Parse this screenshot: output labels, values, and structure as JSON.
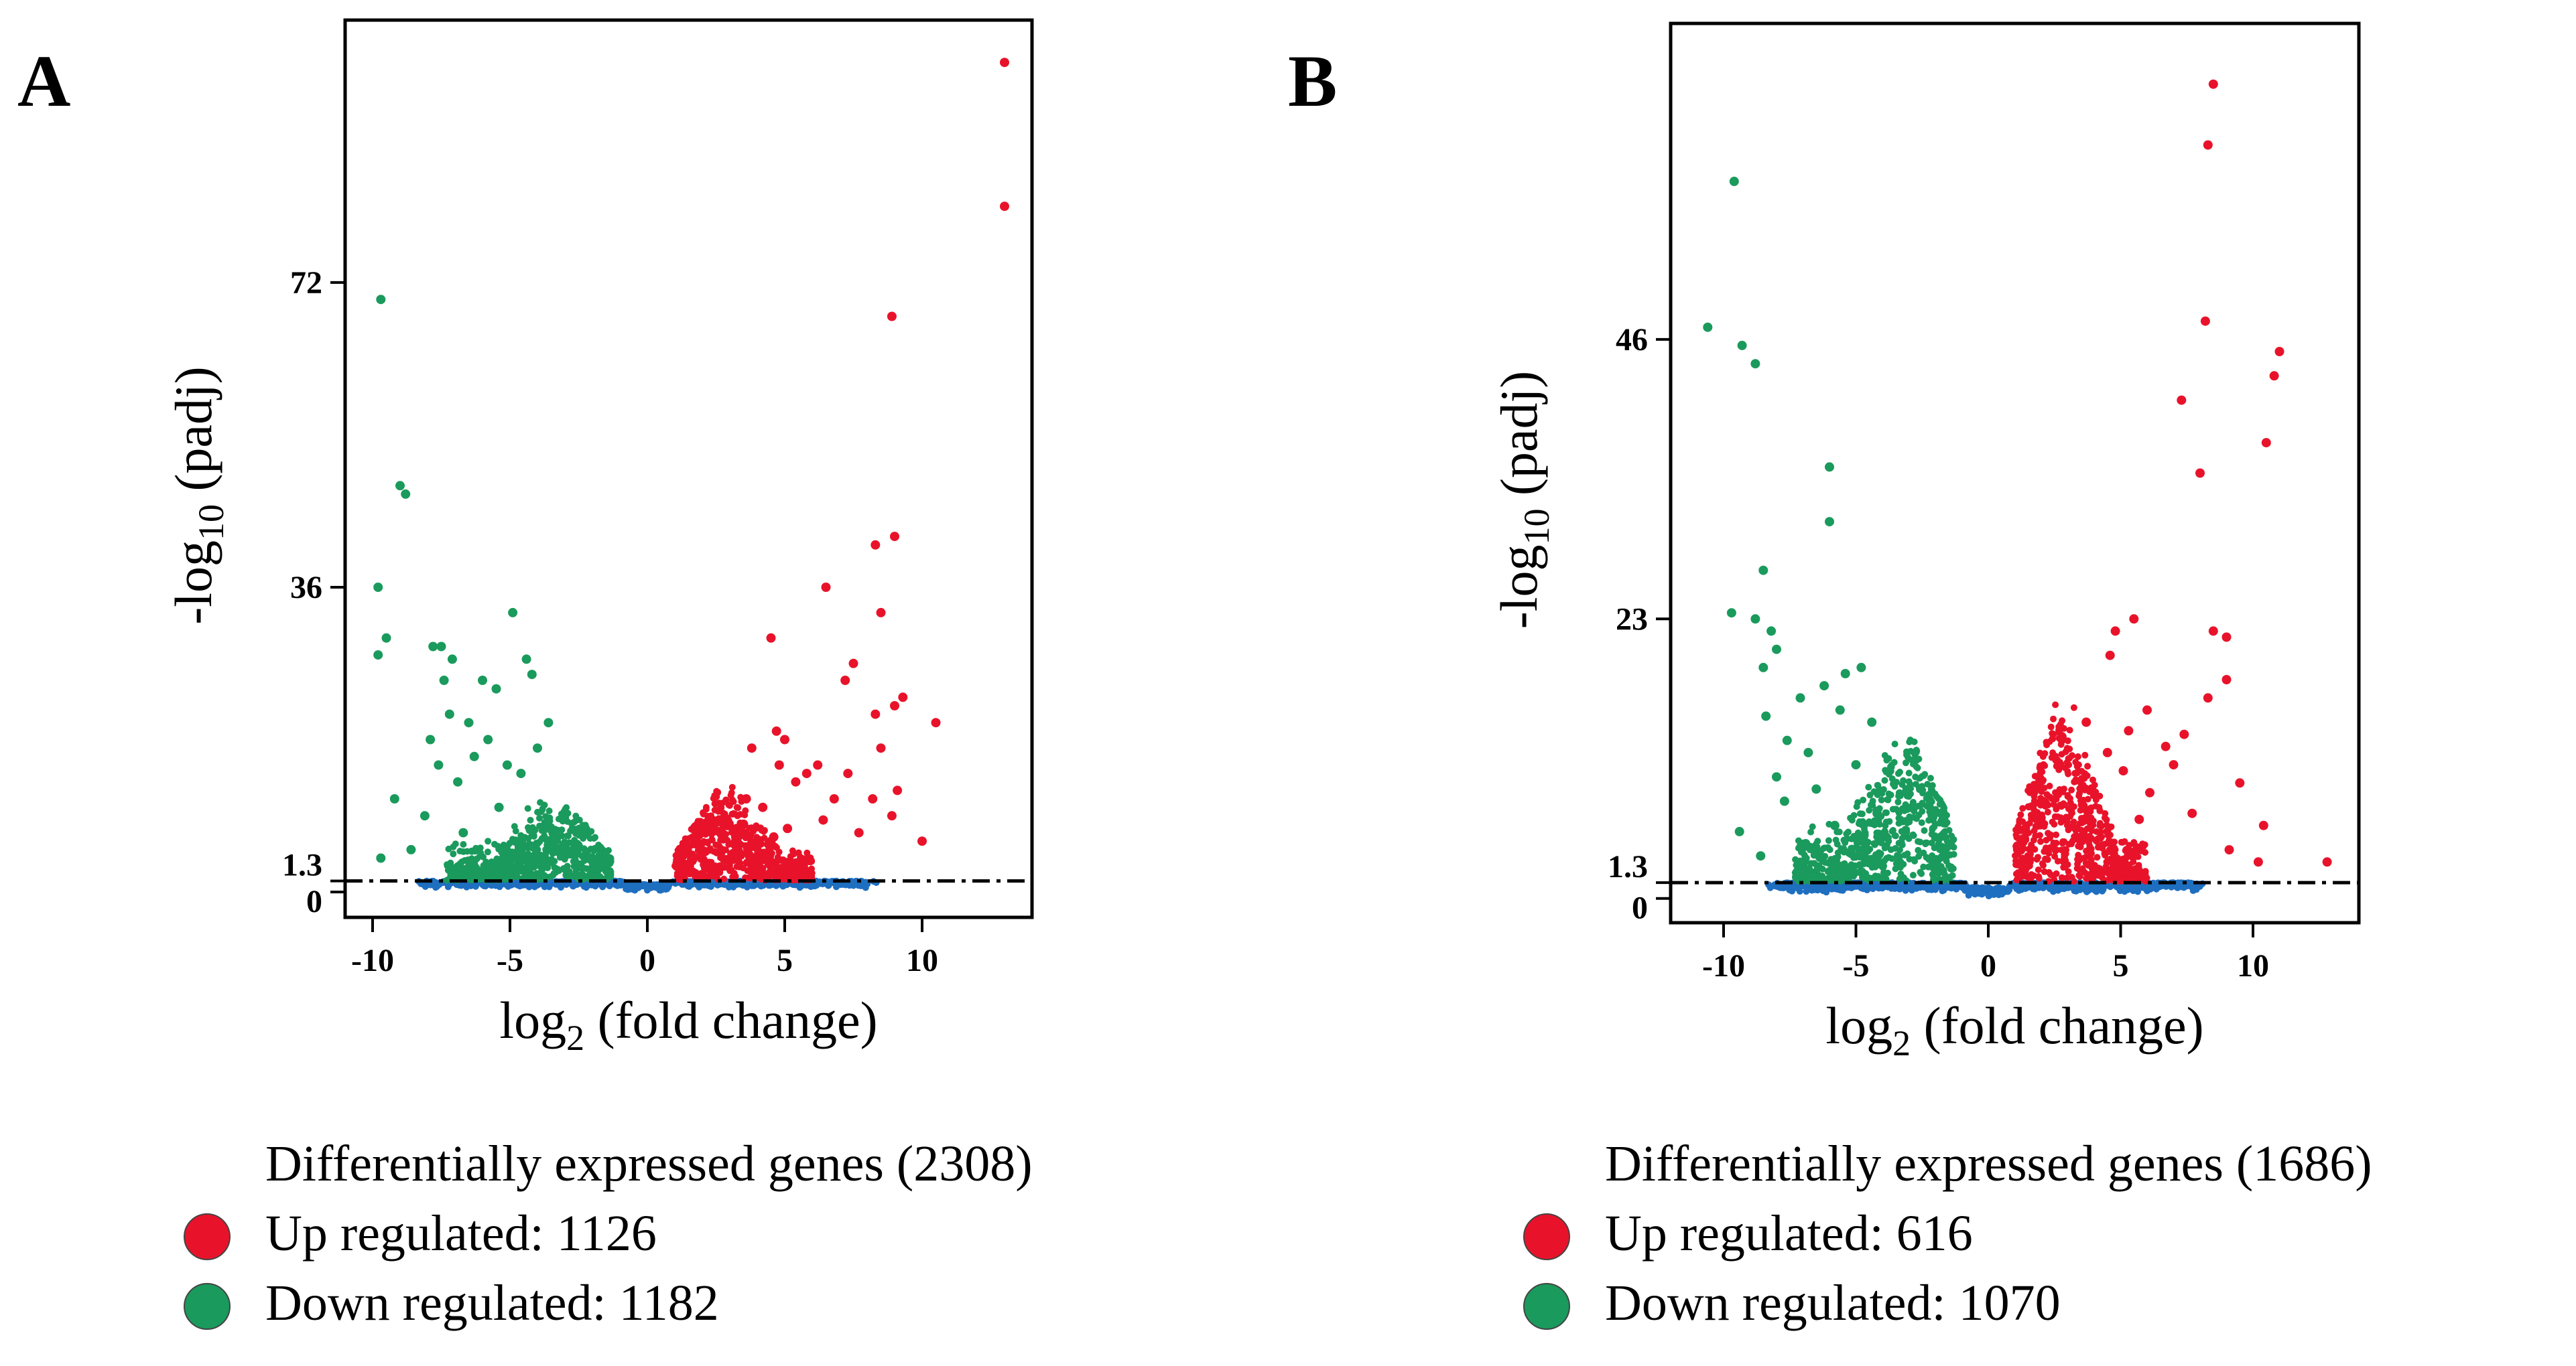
{
  "chart_data": [
    {
      "type": "scatter",
      "panel_label": "A",
      "xlabel": "log",
      "xlabel_sub": "2",
      "xlabel_rest": " (fold change)",
      "ylabel_prefix": "-log",
      "ylabel_sub": "10",
      "ylabel_rest": " (padj)",
      "xlim": [
        -11,
        14
      ],
      "ylim": [
        -3,
        103
      ],
      "x_ticks": [
        -10,
        -5,
        0,
        5,
        10
      ],
      "x_tick_labels": [
        "-10",
        "-5",
        "0",
        "5",
        "10"
      ],
      "y_ticks": [
        0,
        1.3,
        36,
        72
      ],
      "y_tick_labels": [
        "0",
        "1.3",
        "36",
        "72"
      ],
      "threshold": 1.3,
      "colors": {
        "up": "#e8132a",
        "down": "#1a9a5c",
        "ns": "#1f6fc0"
      },
      "series": [
        {
          "name": "Up regulated",
          "points": [
            [
              13,
              98
            ],
            [
              13,
              81
            ],
            [
              8.9,
              68
            ],
            [
              9,
              42
            ],
            [
              8.3,
              41
            ],
            [
              6.5,
              36
            ],
            [
              8.5,
              33
            ],
            [
              4.5,
              30
            ],
            [
              7.5,
              27
            ],
            [
              7.2,
              25
            ],
            [
              9.3,
              23
            ],
            [
              9,
              22
            ],
            [
              8.3,
              21
            ],
            [
              10.5,
              20
            ],
            [
              4.7,
              19
            ],
            [
              5,
              18
            ],
            [
              8.5,
              17
            ],
            [
              3.8,
              17
            ],
            [
              6.2,
              15
            ],
            [
              4.8,
              15
            ],
            [
              7.3,
              14
            ],
            [
              5.8,
              14
            ],
            [
              9.1,
              12
            ],
            [
              5.4,
              13
            ],
            [
              6.8,
              11
            ],
            [
              3.6,
              11
            ],
            [
              8.2,
              11
            ],
            [
              4.2,
              10
            ],
            [
              8.9,
              9
            ],
            [
              6.4,
              8.5
            ],
            [
              10,
              6
            ],
            [
              5.1,
              7.5
            ],
            [
              3.5,
              8
            ],
            [
              7.7,
              7
            ],
            [
              4.6,
              6.5
            ]
          ]
        },
        {
          "name": "Down regulated",
          "points": [
            [
              -9.7,
              70
            ],
            [
              -9,
              48
            ],
            [
              -8.8,
              47
            ],
            [
              -9.8,
              36
            ],
            [
              -4.9,
              33
            ],
            [
              -9.5,
              30
            ],
            [
              -9.8,
              28
            ],
            [
              -7.8,
              29
            ],
            [
              -7.5,
              29
            ],
            [
              -7.1,
              27.5
            ],
            [
              -4.4,
              27.5
            ],
            [
              -4.2,
              25.7
            ],
            [
              -7.4,
              25
            ],
            [
              -6,
              25
            ],
            [
              -5.5,
              24
            ],
            [
              -7.2,
              21
            ],
            [
              -6.5,
              20
            ],
            [
              -3.6,
              20
            ],
            [
              -5.8,
              18
            ],
            [
              -7.9,
              18
            ],
            [
              -4,
              17
            ],
            [
              -6.3,
              16
            ],
            [
              -5.1,
              15
            ],
            [
              -7.6,
              15
            ],
            [
              -4.6,
              14
            ],
            [
              -6.9,
              13
            ],
            [
              -9.2,
              11
            ],
            [
              -5.4,
              10
            ],
            [
              -8.1,
              9
            ],
            [
              -6.7,
              7
            ],
            [
              -4.8,
              6
            ],
            [
              -9.7,
              4
            ],
            [
              -8.6,
              5
            ]
          ]
        }
      ],
      "legend_title": "Differentially expressed genes (2308)",
      "up_label": "Up regulated: 1126",
      "down_label": "Down regulated: 1182"
    },
    {
      "type": "scatter",
      "panel_label": "B",
      "xlabel": "log",
      "xlabel_sub": "2",
      "xlabel_rest": " (fold change)",
      "ylabel_prefix": "-log",
      "ylabel_sub": "10",
      "ylabel_rest": " (padj)",
      "xlim": [
        -12,
        14
      ],
      "ylim": [
        -2,
        72
      ],
      "x_ticks": [
        -10,
        -5,
        0,
        5,
        10
      ],
      "x_tick_labels": [
        "-10",
        "-5",
        "0",
        "5",
        "10"
      ],
      "y_ticks": [
        0,
        1.3,
        23,
        46
      ],
      "y_tick_labels": [
        "0",
        "1.3",
        "23",
        "46"
      ],
      "threshold": 1.3,
      "colors": {
        "up": "#e8132a",
        "down": "#1a9a5c",
        "ns": "#1f6fc0"
      },
      "series": [
        {
          "name": "Up regulated",
          "points": [
            [
              8.5,
              67
            ],
            [
              8.3,
              62
            ],
            [
              8.2,
              47.5
            ],
            [
              11,
              45
            ],
            [
              10.8,
              43
            ],
            [
              7.3,
              41
            ],
            [
              10.5,
              37.5
            ],
            [
              8,
              35
            ],
            [
              5.5,
              23
            ],
            [
              4.8,
              22
            ],
            [
              8.5,
              22
            ],
            [
              9,
              21.5
            ],
            [
              4.6,
              20
            ],
            [
              9,
              18
            ],
            [
              8.3,
              16.5
            ],
            [
              6,
              15.5
            ],
            [
              3.7,
              14.5
            ],
            [
              5.3,
              13.8
            ],
            [
              7.4,
              13.5
            ],
            [
              6.7,
              12.5
            ],
            [
              4.5,
              12
            ],
            [
              7,
              11
            ],
            [
              5.1,
              10.5
            ],
            [
              9.5,
              9.5
            ],
            [
              3.9,
              9
            ],
            [
              6.1,
              8.7
            ],
            [
              10.4,
              6
            ],
            [
              10.2,
              3
            ],
            [
              9.1,
              4
            ],
            [
              12.8,
              3
            ],
            [
              7.7,
              7
            ],
            [
              5.7,
              6.5
            ]
          ]
        },
        {
          "name": "Down regulated",
          "points": [
            [
              -9.6,
              59
            ],
            [
              -10.6,
              47
            ],
            [
              -9.3,
              45.5
            ],
            [
              -8.8,
              44
            ],
            [
              -6,
              35.5
            ],
            [
              -6,
              31
            ],
            [
              -8.5,
              27
            ],
            [
              -9.7,
              23.5
            ],
            [
              -8.8,
              23
            ],
            [
              -8.2,
              22
            ],
            [
              -8,
              20.5
            ],
            [
              -8.5,
              19
            ],
            [
              -4.8,
              19
            ],
            [
              -5.4,
              18.5
            ],
            [
              -6.2,
              17.5
            ],
            [
              -7.1,
              16.5
            ],
            [
              -5.6,
              15.5
            ],
            [
              -8.4,
              15
            ],
            [
              -4.4,
              14.5
            ],
            [
              -7.6,
              13
            ],
            [
              -6.8,
              12
            ],
            [
              -5,
              11
            ],
            [
              -8,
              10
            ],
            [
              -6.5,
              9
            ],
            [
              -7.7,
              8
            ],
            [
              -5.8,
              6
            ],
            [
              -9.4,
              5.5
            ],
            [
              -6.9,
              4.5
            ],
            [
              -4.2,
              7
            ],
            [
              -8.6,
              3.5
            ]
          ]
        }
      ],
      "legend_title": "Differentially expressed genes (1686)",
      "up_label": "Up regulated: 616",
      "down_label": "Down regulated: 1070"
    }
  ]
}
